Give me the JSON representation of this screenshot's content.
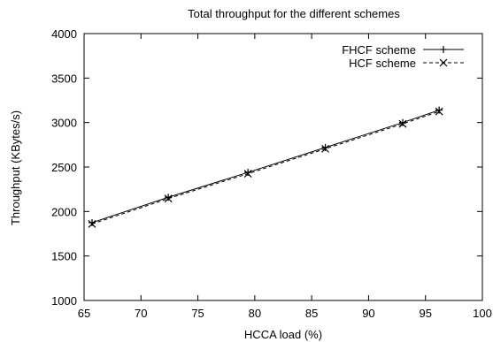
{
  "chart_data": {
    "type": "line",
    "title": "Total throughput for the different schemes",
    "xlabel": "HCCA load (%)",
    "ylabel": "Throughput (KBytes/s)",
    "xlim": [
      65,
      100
    ],
    "ylim": [
      1000,
      4000
    ],
    "xticks": [
      65,
      70,
      75,
      80,
      85,
      90,
      95,
      100
    ],
    "yticks": [
      1000,
      1500,
      2000,
      2500,
      3000,
      3500,
      4000
    ],
    "grid": false,
    "legend_position": "top-right",
    "series": [
      {
        "name": "FHCF scheme",
        "marker": "plus",
        "line_style": "solid",
        "color": "#000000",
        "x": [
          65.7,
          72.4,
          79.4,
          86.2,
          93.0,
          96.2
        ],
        "y": [
          1875,
          2160,
          2440,
          2720,
          3000,
          3140
        ]
      },
      {
        "name": "HCF scheme",
        "marker": "cross",
        "line_style": "dashed",
        "color": "#000000",
        "x": [
          65.7,
          72.4,
          79.4,
          86.2,
          93.0,
          96.2
        ],
        "y": [
          1860,
          2145,
          2425,
          2705,
          2985,
          3125
        ]
      }
    ]
  }
}
